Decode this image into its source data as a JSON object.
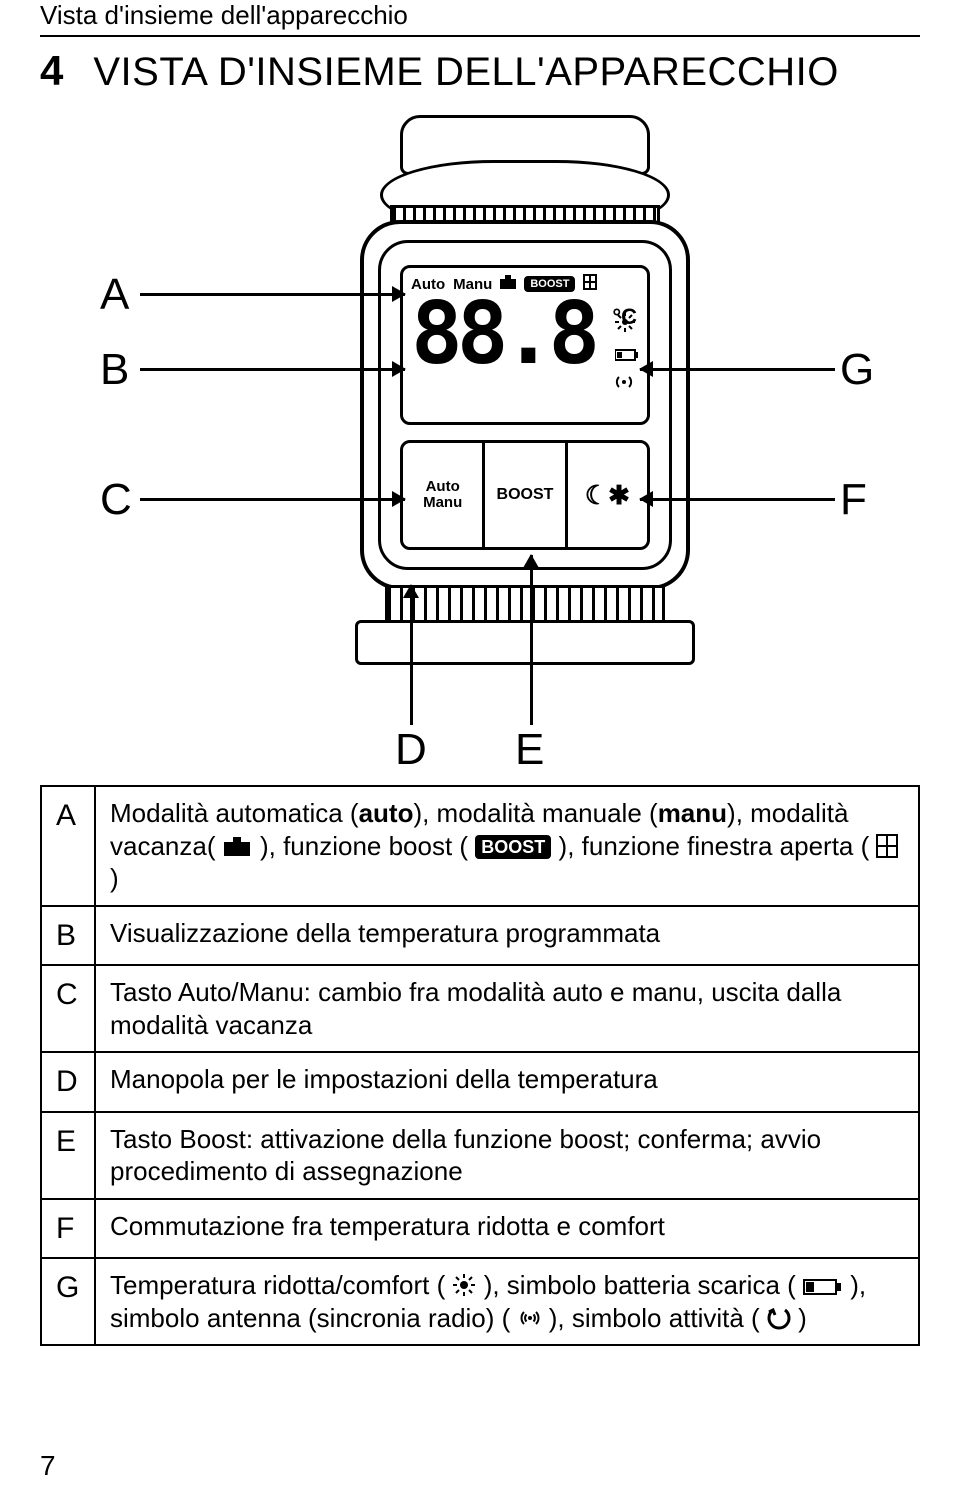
{
  "header": "Vista d'insieme dell'apparecchio",
  "chapter_number": "4",
  "chapter_title": "VISTA D'INSIEME DELL'APPARECCHIO",
  "page_number": "7",
  "diagram": {
    "labels": {
      "A": "A",
      "B": "B",
      "C": "C",
      "D": "D",
      "E": "E",
      "F": "F",
      "G": "G"
    },
    "lcd": {
      "auto": "Auto",
      "manu": "Manu",
      "boost": "BOOST",
      "digits": "88.8",
      "degC": "°C"
    },
    "buttons": {
      "auto_manu_line1": "Auto",
      "auto_manu_line2": "Manu",
      "boost": "BOOST",
      "moon": "☾✱"
    }
  },
  "legend": [
    {
      "key": "A",
      "html": "Modalità automatica (<b>auto</b>), modalità manuale (<b>manu</b>), modalità vacanza( <svg class='inline-icon' width='30' height='22'><rect x='1' y='6' width='26' height='14' fill='#000'/><rect x='10' y='1' width='8' height='6' fill='#000'/></svg> ), funzione boost ( <span class='boost-chip'>BOOST</span> ), funzione finestra aperta ( <svg class='inline-icon' width='22' height='24'><rect x='1' y='1' width='20' height='22' fill='none' stroke='#000' stroke-width='2'/><line x1='11' y1='1' x2='11' y2='23' stroke='#000' stroke-width='2'/><line x1='1' y1='12' x2='21' y2='12' stroke='#000' stroke-width='2'/></svg> )"
    },
    {
      "key": "B",
      "html": "Visualizzazione della temperatura programmata"
    },
    {
      "key": "C",
      "html": "Tasto Auto/Manu: cambio fra modalità auto e manu, uscita dalla modalità vacanza"
    },
    {
      "key": "D",
      "html": "Manopola per le impostazioni della temperatura"
    },
    {
      "key": "E",
      "html": "Tasto Boost: attivazione della funzione boost; conferma; avvio procedimento di assegnazione"
    },
    {
      "key": "F",
      "html": "Commutazione fra temperatura ridotta e comfort"
    },
    {
      "key": "G",
      "html": "Temperatura ridotta/comfort ( <svg class='inline-icon' width='24' height='24'><circle cx='12' cy='12' r='4' fill='#000'/><g stroke='#000' stroke-width='2'><line x1='12' y1='1' x2='12' y2='5'/><line x1='12' y1='19' x2='12' y2='23'/><line x1='1' y1='12' x2='5' y2='12'/><line x1='19' y1='12' x2='23' y2='12'/><line x1='4' y1='4' x2='7' y2='7'/><line x1='17' y1='17' x2='20' y2='20'/><line x1='4' y1='20' x2='7' y2='17'/><line x1='17' y1='7' x2='20' y2='4'/></g></svg> ), simbolo batteria scarica ( <svg class='inline-icon' width='40' height='20'><rect x='1' y='3' width='32' height='14' fill='none' stroke='#000' stroke-width='2'/><rect x='33' y='6' width='5' height='8' fill='#000'/><rect x='3' y='5' width='8' height='10' fill='#000'/></svg> ), simbolo antenna (sincronia radio) ( <svg class='inline-icon' width='24' height='24'><circle cx='12' cy='12' r='2' fill='#000'/><path d='M6 6 A8.5 8.5 0 0 0 6 18' fill='none' stroke='#000' stroke-width='2'/><path d='M18 6 A8.5 8.5 0 0 1 18 18' fill='none' stroke='#000' stroke-width='2'/><path d='M8.5 8.5 A5 5 0 0 0 8.5 15.5' fill='none' stroke='#000' stroke-width='2'/><path d='M15.5 8.5 A5 5 0 0 1 15.5 15.5' fill='none' stroke='#000' stroke-width='2'/></svg> ), simbolo attività ( <svg class='inline-icon' width='24' height='24'><path d='M6 4 A10 10 0 1 0 18 4' fill='none' stroke='#000' stroke-width='3'/><polyline points='2,6 6,4 8,9' fill='none' stroke='#000' stroke-width='3'/></svg> )"
    }
  ]
}
